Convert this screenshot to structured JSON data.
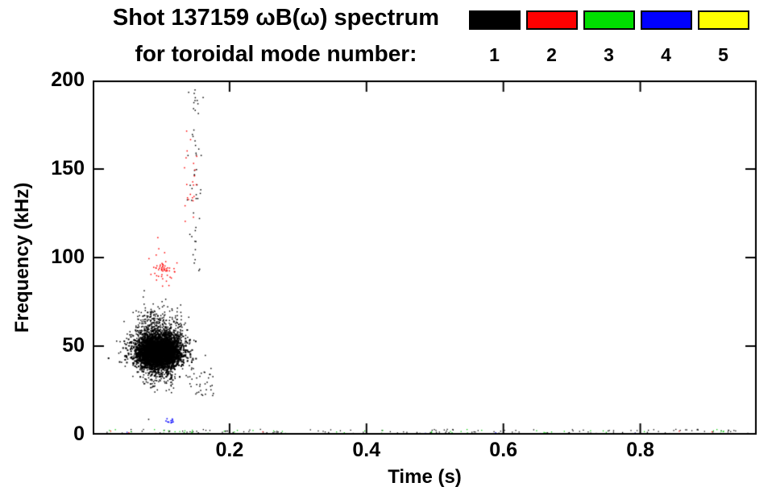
{
  "chart_data": {
    "type": "scatter",
    "title_line1": "Shot 137159 ωB(ω) spectrum",
    "title_line2": "for toroidal mode number:",
    "xlabel": "Time (s)",
    "ylabel": "Frequency (kHz)",
    "xlim": [
      0.0,
      0.97
    ],
    "ylim": [
      0,
      200
    ],
    "xticks": [
      0.2,
      0.4,
      0.6,
      0.8
    ],
    "xtick_labels": [
      "0.2",
      "0.4",
      "0.6",
      "0.8"
    ],
    "yticks": [
      0,
      50,
      100,
      150,
      200
    ],
    "ytick_labels": [
      "0",
      "50",
      "100",
      "150",
      "200"
    ],
    "legend": [
      {
        "label": "1",
        "color": "#000000"
      },
      {
        "label": "2",
        "color": "#ff0000"
      },
      {
        "label": "3",
        "color": "#00dd00"
      },
      {
        "label": "4",
        "color": "#0000ff"
      },
      {
        "label": "5",
        "color": "#ffff00"
      }
    ],
    "legend_position": "top-right",
    "grid": false,
    "clusters": [
      {
        "name": "mode1-main-blob-core",
        "color": "#000000",
        "n": 3000,
        "dist": "gauss",
        "t_mean": 0.097,
        "t_sd": 0.016,
        "f_mean": 47,
        "f_sd": 4.5,
        "size": 2
      },
      {
        "name": "mode1-main-blob-halo",
        "color": "#000000",
        "n": 900,
        "dist": "gauss",
        "t_mean": 0.097,
        "t_sd": 0.019,
        "f_mean": 50,
        "f_sd": 9,
        "size": 1.5
      },
      {
        "name": "mode1-upward-streaks",
        "color": "#000000",
        "n": 60,
        "dist": "vstreak",
        "t_range": [
          0.066,
          0.132
        ],
        "f_base": 44,
        "f_len": [
          6,
          32
        ],
        "size": 1.5
      },
      {
        "name": "mode1-downward-spikes",
        "color": "#000000",
        "n": 18,
        "dist": "vstreak",
        "t_range": [
          0.08,
          0.12
        ],
        "f_base": 42,
        "f_len": [
          -18,
          -5
        ],
        "size": 1.5
      },
      {
        "name": "mode1-lower-dots",
        "color": "#000000",
        "n": 30,
        "dist": "uniform",
        "t_range": [
          0.075,
          0.125
        ],
        "f_range": [
          27,
          40
        ],
        "size": 1.5
      },
      {
        "name": "mode1-high-freq-column",
        "color": "#000000",
        "n": 50,
        "dist": "gauss_t_uniform_f",
        "t_mean": 0.149,
        "t_sd": 0.004,
        "f_range": [
          90,
          196
        ],
        "size": 1.5
      },
      {
        "name": "mode1-post-blob-trail",
        "color": "#000000",
        "n": 35,
        "dist": "uniform",
        "t_range": [
          0.14,
          0.18
        ],
        "f_range": [
          22,
          38
        ],
        "size": 1.5
      },
      {
        "name": "mode1-baseline-speckle",
        "color": "#000000",
        "n": 160,
        "dist": "uniform",
        "t_range": [
          0.015,
          0.965
        ],
        "f_range": [
          0,
          3
        ],
        "size": 1.3
      },
      {
        "name": "mode2-mid-cluster",
        "color": "#ff0000",
        "n": 55,
        "dist": "gauss",
        "t_mean": 0.104,
        "t_sd": 0.01,
        "f_mean": 92,
        "f_sd": 5,
        "size": 1.5
      },
      {
        "name": "mode2-high-dots",
        "color": "#ff0000",
        "n": 22,
        "dist": "uniform",
        "t_range": [
          0.134,
          0.154
        ],
        "f_range": [
          118,
          172
        ],
        "size": 1.5
      },
      {
        "name": "mode2-baseline-speckle",
        "color": "#ff0000",
        "n": 14,
        "dist": "uniform",
        "t_range": [
          0.02,
          0.96
        ],
        "f_range": [
          0,
          2
        ],
        "size": 1.3
      },
      {
        "name": "mode3-baseline-speckle",
        "color": "#00cc00",
        "n": 70,
        "dist": "uniform",
        "t_range": [
          0.02,
          0.965
        ],
        "f_range": [
          0,
          3
        ],
        "size": 1.3
      },
      {
        "name": "mode4-low-cluster",
        "color": "#0000ff",
        "n": 10,
        "dist": "uniform",
        "t_range": [
          0.104,
          0.118
        ],
        "f_range": [
          6,
          9
        ],
        "size": 1.6
      },
      {
        "name": "mode4-baseline-speckle",
        "color": "#0000ff",
        "n": 5,
        "dist": "uniform",
        "t_range": [
          0.05,
          0.9
        ],
        "f_range": [
          0,
          2
        ],
        "size": 1.3
      }
    ]
  }
}
